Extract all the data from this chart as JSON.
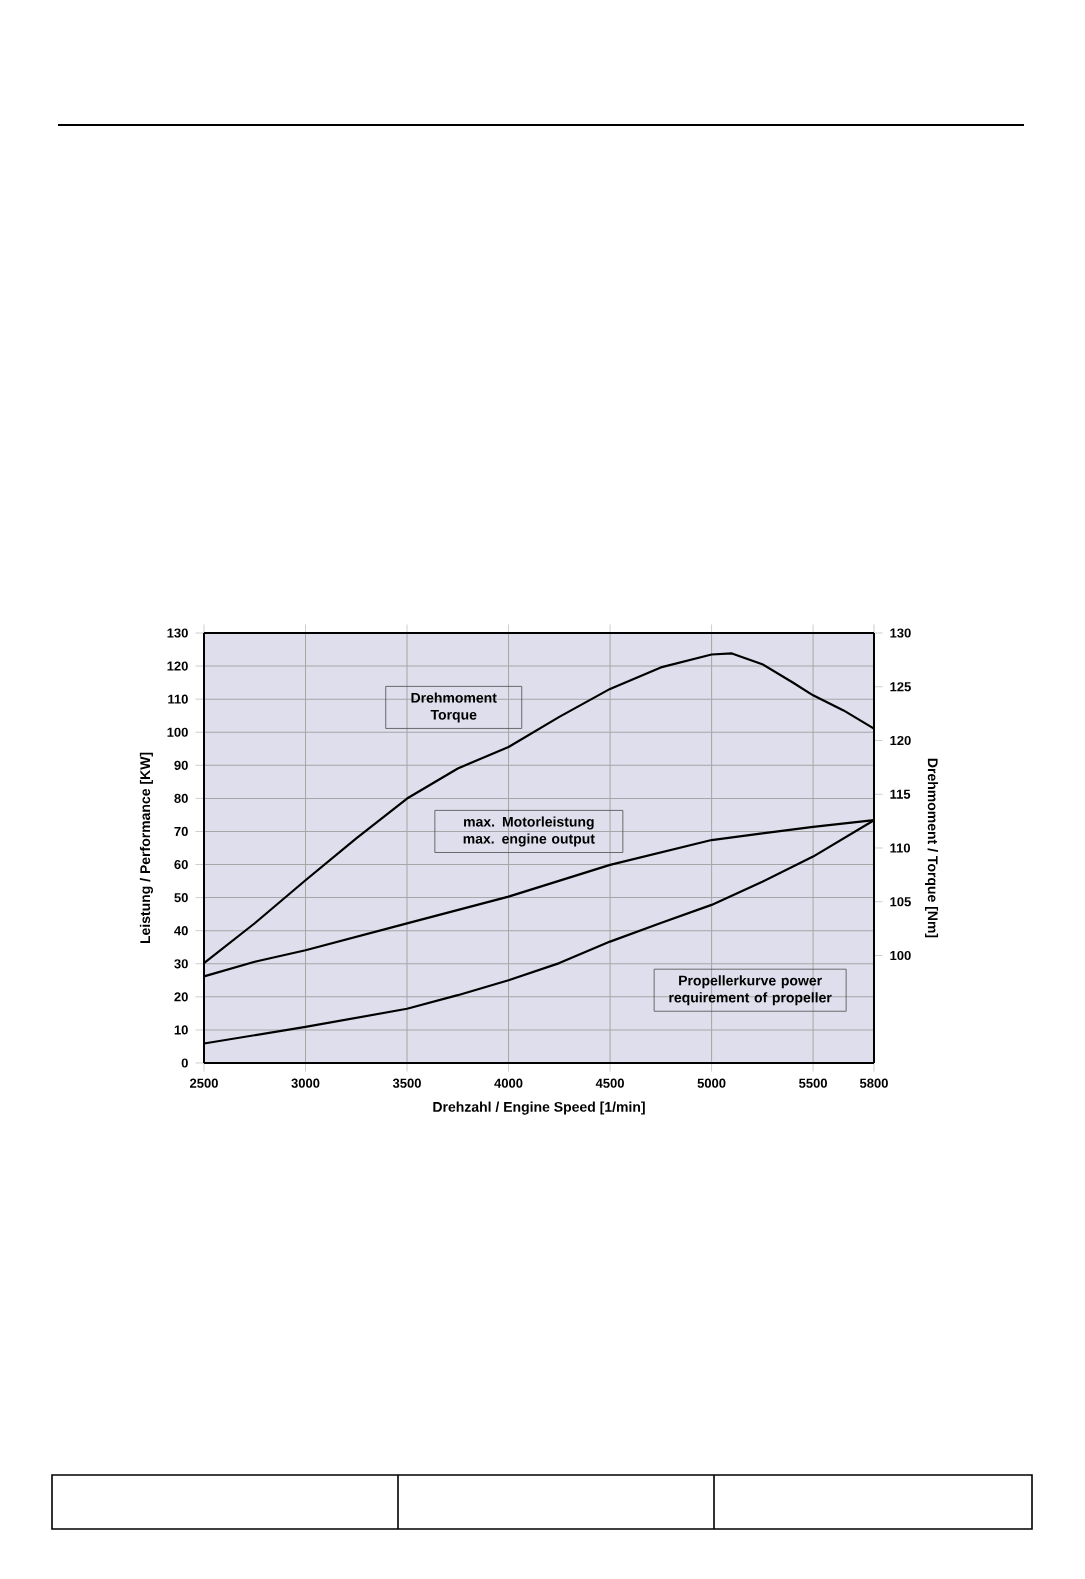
{
  "chart_data": {
    "type": "line",
    "xlabel": "Drehzahl / Engine Speed [1/min]",
    "ylabel": "Leistung / Performance [KW]",
    "y2label": "Drehmoment / Torque [Nm]",
    "xlim": [
      2500,
      5800
    ],
    "xticks": [
      2500,
      3000,
      3500,
      4000,
      4500,
      5000,
      5500,
      5800
    ],
    "ylim": [
      0,
      130
    ],
    "yticks": [
      0,
      10,
      20,
      30,
      40,
      50,
      60,
      70,
      80,
      90,
      100,
      110,
      120,
      130
    ],
    "y2lim": [
      90,
      130
    ],
    "y2ticks": [
      100,
      105,
      110,
      115,
      120,
      125,
      130
    ],
    "grid": true,
    "annotations": [
      "Drehmoment Torque",
      "max. Motorleistung max. engine output",
      "Propellerkurve power requirement of propeller"
    ],
    "series": [
      {
        "color": "#000000",
        "axis": "y2",
        "x": [
          2500,
          2750,
          3000,
          3250,
          3500,
          3750,
          4000,
          4250,
          4500,
          4750,
          5000,
          5100,
          5250,
          5400,
          5500,
          5650,
          5800
        ],
        "values": [
          99.3,
          103.0,
          107.0,
          110.9,
          114.6,
          117.4,
          119.4,
          122.2,
          124.8,
          126.8,
          128.0,
          128.1,
          127.1,
          125.4,
          124.2,
          122.8,
          121.1
        ]
      },
      {
        "color": "#000000",
        "x": [
          2500,
          2750,
          3000,
          3500,
          4000,
          4500,
          5000,
          5250,
          5500,
          5800
        ],
        "values": [
          26.2,
          30.6,
          34.1,
          42.2,
          50.3,
          59.9,
          67.4,
          69.4,
          71.4,
          73.4
        ]
      },
      {
        "color": "#000000",
        "x": [
          2500,
          3000,
          3500,
          3750,
          4000,
          4250,
          4500,
          4750,
          5000,
          5250,
          5500,
          5800
        ],
        "values": [
          5.9,
          10.9,
          16.4,
          20.5,
          25.0,
          30.2,
          36.7,
          42.3,
          47.8,
          54.8,
          62.4,
          73.4
        ]
      }
    ]
  }
}
